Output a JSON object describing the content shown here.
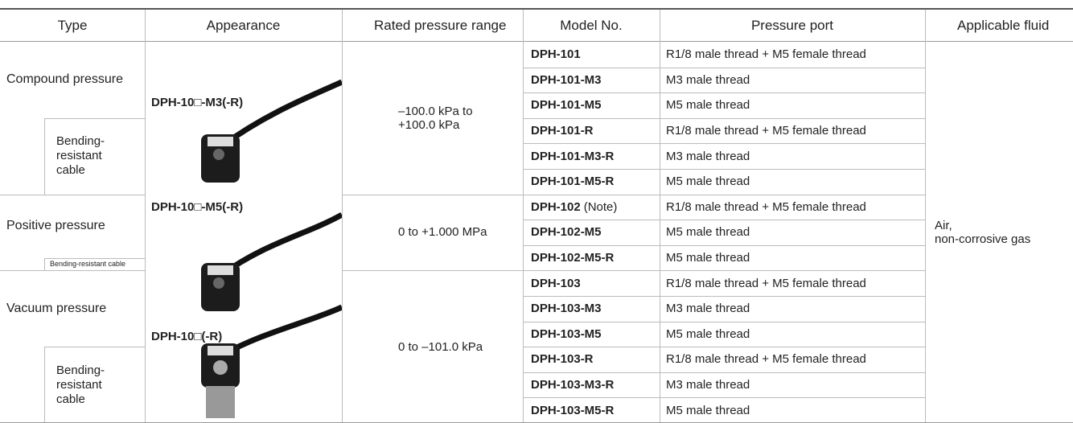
{
  "header": {
    "columns": [
      "Type",
      "Appearance",
      "Rated pressure range",
      "Model No.",
      "Pressure port",
      "Applicable fluid"
    ]
  },
  "types": [
    {
      "label": "Compound pressure",
      "sub": "Bending-resistant cable"
    },
    {
      "label": "Positive pressure",
      "sub": "Bending-resistant cable"
    },
    {
      "label": "Vacuum pressure",
      "sub": "Bending-resistant cable"
    }
  ],
  "appearance": [
    "DPH-10□-M3(-R)",
    "DPH-10□-M5(-R)",
    "DPH-10□(-R)"
  ],
  "ranges": [
    "–100.0 kPa to\n+100.0 kPa",
    "0 to +1.000 MPa",
    "0 to –101.0 kPa"
  ],
  "rows": [
    {
      "model": "DPH-101",
      "port": "R1/8 male thread + M5 female thread"
    },
    {
      "model": "DPH-101-M3",
      "port": "M3 male thread"
    },
    {
      "model": "DPH-101-M5",
      "port": "M5 male thread"
    },
    {
      "model": "DPH-101-R",
      "port": "R1/8 male thread + M5 female thread"
    },
    {
      "model": "DPH-101-M3-R",
      "port": "M3 male thread"
    },
    {
      "model": "DPH-101-M5-R",
      "port": "M5 male thread"
    },
    {
      "model": "DPH-102",
      "note": "(Note)",
      "port": "R1/8 male thread + M5 female thread"
    },
    {
      "model": "DPH-102-M5",
      "port": "M5 male thread"
    },
    {
      "model": "DPH-102-M5-R",
      "port": "M5 male thread"
    },
    {
      "model": "DPH-103",
      "port": "R1/8 male thread + M5 female thread"
    },
    {
      "model": "DPH-103-M3",
      "port": "M3 male thread"
    },
    {
      "model": "DPH-103-M5",
      "port": "M5 male thread"
    },
    {
      "model": "DPH-103-R",
      "port": "R1/8 male thread + M5 female thread"
    },
    {
      "model": "DPH-103-M3-R",
      "port": "M3 male thread"
    },
    {
      "model": "DPH-103-M5-R",
      "port": "M5 male thread"
    }
  ],
  "fluid": "Air,\nnon-corrosive gas"
}
